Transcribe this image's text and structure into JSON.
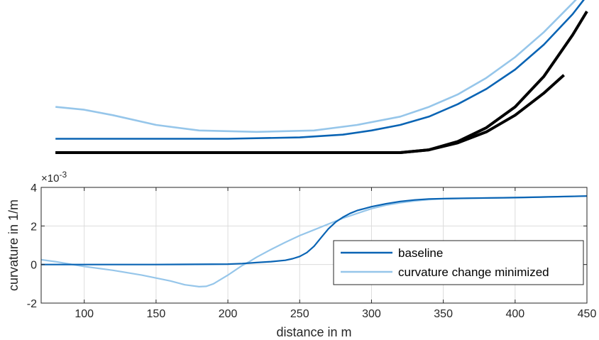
{
  "colors": {
    "boundary": "#000000",
    "baseline": "#0a64b4",
    "minimized": "#96c6ea",
    "grid": "#dcdcdc",
    "axis": "#262626"
  },
  "chart_data": [
    {
      "type": "line",
      "panel": "road-top-view",
      "axes_visible": false,
      "series": [
        {
          "key": "outer-boundary",
          "x": [
            80,
            320,
            340,
            360,
            380,
            400,
            420,
            440,
            450
          ],
          "y": [
            0,
            0,
            0.02,
            0.08,
            0.18,
            0.33,
            0.55,
            0.85,
            1.02
          ]
        },
        {
          "key": "inner-boundary",
          "x": [
            80,
            320,
            340,
            360,
            380,
            400,
            420,
            434
          ],
          "y": [
            0,
            0,
            0.02,
            0.07,
            0.15,
            0.27,
            0.43,
            0.56
          ]
        },
        {
          "key": "baseline",
          "x": [
            80,
            200,
            250,
            280,
            300,
            320,
            340,
            360,
            380,
            400,
            420,
            440,
            452
          ],
          "y": [
            0.1,
            0.1,
            0.11,
            0.13,
            0.16,
            0.2,
            0.26,
            0.35,
            0.46,
            0.6,
            0.78,
            1.0,
            1.16
          ]
        },
        {
          "key": "minimized",
          "x": [
            80,
            100,
            120,
            150,
            180,
            220,
            260,
            290,
            320,
            340,
            360,
            380,
            400,
            420,
            440,
            454
          ],
          "y": [
            0.33,
            0.31,
            0.27,
            0.2,
            0.16,
            0.15,
            0.16,
            0.2,
            0.26,
            0.33,
            0.42,
            0.54,
            0.69,
            0.87,
            1.08,
            1.23
          ]
        }
      ]
    },
    {
      "type": "line",
      "xlabel": "distance in m",
      "ylabel": "curvature in 1/m",
      "y_exponent": "×10",
      "y_exponent_power": "-3",
      "xlim": [
        70,
        450
      ],
      "ylim": [
        -2,
        4
      ],
      "x_ticks": [
        100,
        150,
        200,
        250,
        300,
        350,
        400,
        450
      ],
      "y_ticks": [
        -2,
        0,
        2,
        4
      ],
      "grid": true,
      "legend_position": "bottom-right",
      "series": [
        {
          "name": "baseline",
          "x": [
            70,
            100,
            150,
            200,
            210,
            220,
            230,
            240,
            245,
            250,
            255,
            260,
            265,
            270,
            275,
            280,
            285,
            290,
            295,
            300,
            310,
            320,
            330,
            340,
            350,
            370,
            400,
            450
          ],
          "y": [
            0,
            0,
            0,
            0.02,
            0.05,
            0.1,
            0.15,
            0.22,
            0.3,
            0.42,
            0.62,
            0.95,
            1.4,
            1.85,
            2.2,
            2.45,
            2.65,
            2.8,
            2.9,
            3.0,
            3.15,
            3.27,
            3.35,
            3.4,
            3.42,
            3.44,
            3.47,
            3.55
          ]
        },
        {
          "name": "curvature change minimized",
          "x": [
            70,
            80,
            90,
            100,
            120,
            140,
            160,
            170,
            180,
            185,
            190,
            200,
            210,
            215,
            220,
            230,
            240,
            250,
            260,
            270,
            280,
            290,
            300,
            310,
            320,
            330,
            340,
            350,
            370,
            400,
            450
          ],
          "y": [
            0.25,
            0.15,
            0.02,
            -0.1,
            -0.3,
            -0.55,
            -0.85,
            -1.05,
            -1.15,
            -1.13,
            -1.0,
            -0.55,
            -0.05,
            0.15,
            0.38,
            0.78,
            1.15,
            1.5,
            1.8,
            2.1,
            2.4,
            2.65,
            2.9,
            3.08,
            3.2,
            3.3,
            3.37,
            3.41,
            3.44,
            3.47,
            3.55
          ]
        }
      ]
    }
  ]
}
